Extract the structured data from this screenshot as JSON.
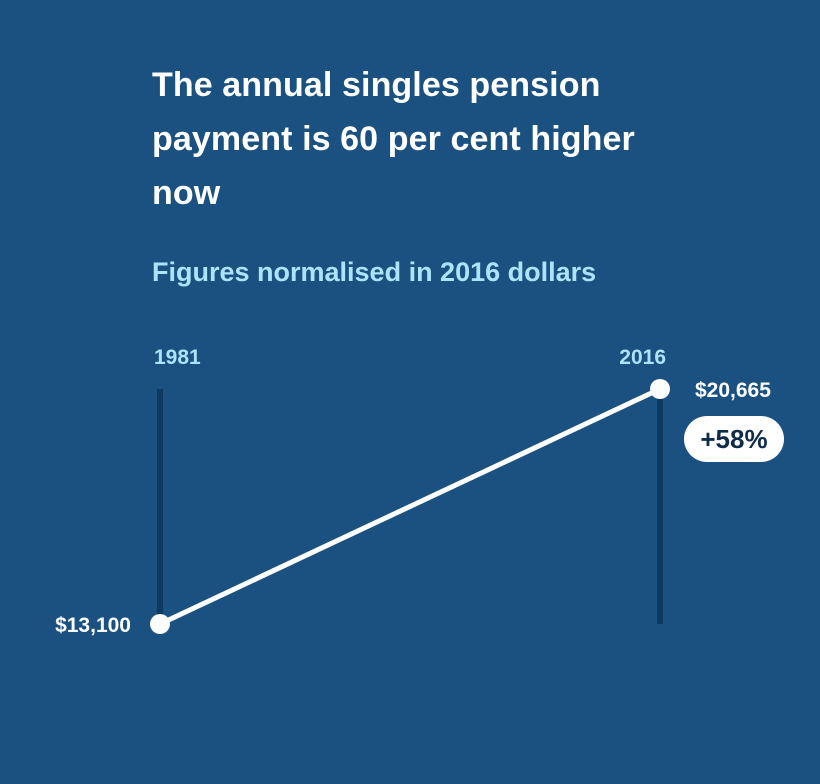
{
  "title": "The annual singles pension payment is 60 per cent higher now",
  "subtitle": "Figures normalised in 2016 dollars",
  "colors": {
    "background": "#1a5180",
    "line": "#ffffff",
    "axis": "#0d3a63",
    "year_label": "#aee3ff",
    "badge_bg": "#ffffff",
    "badge_text": "#0f2c4a"
  },
  "chart_data": {
    "type": "line",
    "title": "The annual singles pension payment is 60 per cent higher now",
    "subtitle": "Figures normalised in 2016 dollars",
    "x": [
      "1981",
      "2016"
    ],
    "series": [
      {
        "values": [
          13100,
          20665
        ],
        "value_labels": [
          "$13,100",
          "$20,665"
        ]
      }
    ],
    "annotation": "+58%",
    "ylim": [
      13100,
      20665
    ],
    "grid": false,
    "legend": "none"
  }
}
